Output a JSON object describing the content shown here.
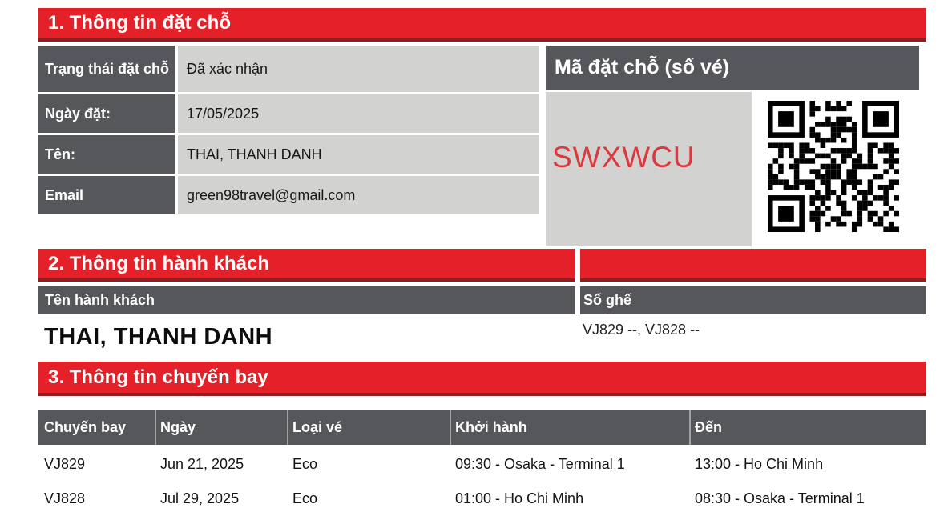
{
  "colors": {
    "brand_red": "#e42128",
    "brand_red_dark": "#8f1d22",
    "dark_gray": "#56575b",
    "light_gray": "#d2d2d1",
    "code_red": "#d93a3e"
  },
  "section1": {
    "title": "1. Thông tin đặt chỗ",
    "fields": [
      {
        "label": "Trạng thái đặt chỗ",
        "value": "Đã xác nhận"
      },
      {
        "label": "Ngày đặt:",
        "value": "17/05/2025"
      },
      {
        "label": "Tên:",
        "value": "THAI, THANH DANH"
      },
      {
        "label": "Email",
        "value": "green98travel@gmail.com"
      }
    ],
    "booking_code": {
      "header": "Mã đặt chỗ (số vé)",
      "code": "SWXWCU",
      "qr": "qr-code-for-booking"
    }
  },
  "section2": {
    "title": "2. Thông tin hành khách",
    "columns": {
      "name": "Tên hành khách",
      "seat": "Số ghế"
    },
    "passenger": {
      "name": "THAI, THANH DANH",
      "seats": "VJ829 --, VJ828 --"
    }
  },
  "section3": {
    "title": "3. Thông tin chuyến bay",
    "columns": [
      "Chuyến bay",
      "Ngày",
      "Loại vé",
      "Khởi hành",
      "Đến"
    ],
    "flights": [
      {
        "flight": "VJ829",
        "date": "Jun 21, 2025",
        "fare": "Eco",
        "departure": "09:30 - Osaka - Terminal 1",
        "arrival": "13:00 - Ho Chi Minh"
      },
      {
        "flight": "VJ828",
        "date": "Jul 29, 2025",
        "fare": "Eco",
        "departure": "01:00 - Ho Chi Minh",
        "arrival": "08:30 - Osaka - Terminal 1"
      }
    ]
  }
}
